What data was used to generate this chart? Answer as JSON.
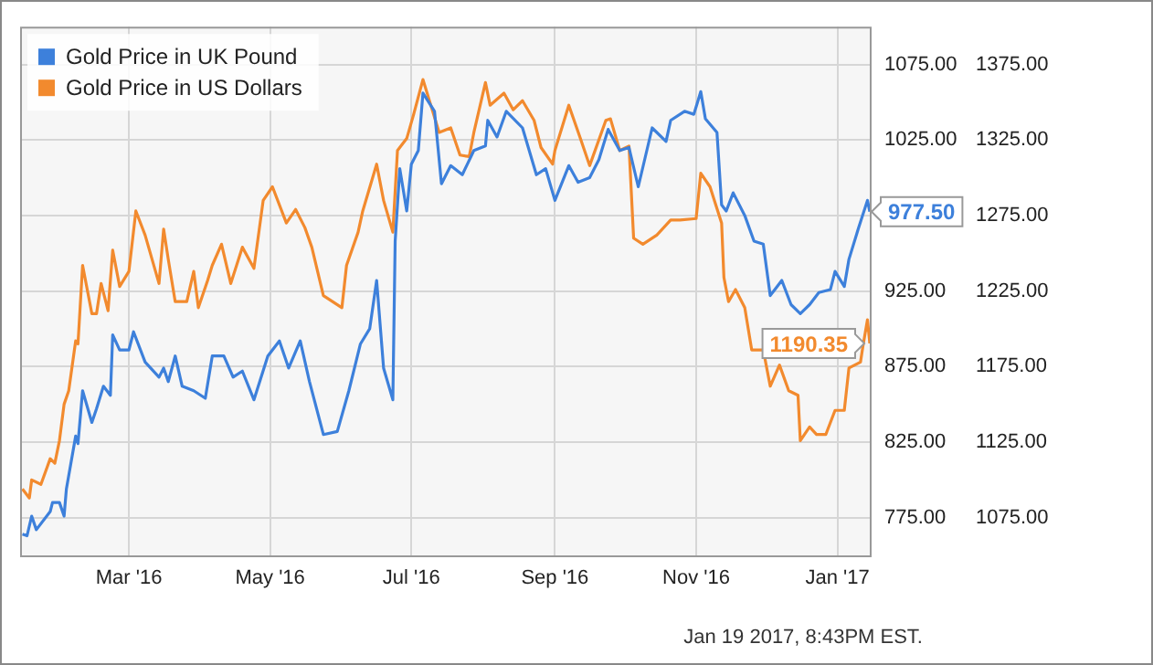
{
  "chart_data": {
    "type": "line",
    "legend": "top left",
    "grid": true,
    "marker": "none",
    "line_style": "solid",
    "xlim": [
      "2016-01-14",
      "2017-01-15"
    ],
    "xticks": [
      {
        "value": "2016-03-01",
        "label": "Mar '16"
      },
      {
        "value": "2016-05-01",
        "label": "May '16"
      },
      {
        "value": "2016-07-01",
        "label": "Jul '16"
      },
      {
        "value": "2016-09-01",
        "label": "Sep '16"
      },
      {
        "value": "2016-11-01",
        "label": "Nov '16"
      },
      {
        "value": "2017-01-01",
        "label": "Jan '17"
      }
    ],
    "ylim": [
      750,
      1100
    ],
    "yticks": [
      {
        "value": 775,
        "label": "775.00"
      },
      {
        "value": 825,
        "label": "825.00"
      },
      {
        "value": 875,
        "label": "875.00"
      },
      {
        "value": 925,
        "label": "925.00"
      },
      {
        "value": 975,
        "label": null
      },
      {
        "value": 1025,
        "label": "1025.00"
      },
      {
        "value": 1075,
        "label": "1075.00"
      }
    ],
    "y2lim": [
      1050,
      1400
    ],
    "y2ticks": [
      {
        "value": 1075,
        "label": "1075.00"
      },
      {
        "value": 1125,
        "label": "1125.00"
      },
      {
        "value": 1175,
        "label": "1175.00"
      },
      {
        "value": 1225,
        "label": "1225.00"
      },
      {
        "value": 1275,
        "label": "1275.00"
      },
      {
        "value": 1325,
        "label": "1325.00"
      },
      {
        "value": 1375,
        "label": "1375.00"
      }
    ],
    "annotations": [
      "Jan 19 2017, 8:43PM EST."
    ],
    "series": [
      {
        "name": "Gold Price in UK Pound",
        "color": "#3d80db",
        "axis": "y",
        "x": [
          "2016-01-15",
          "2016-01-17",
          "2016-01-19",
          "2016-01-21",
          "2016-01-27",
          "2016-01-28",
          "2016-01-31",
          "2016-02-02",
          "2016-02-03",
          "2016-02-07",
          "2016-02-08",
          "2016-02-10",
          "2016-02-14",
          "2016-02-16",
          "2016-02-19",
          "2016-02-22",
          "2016-02-23",
          "2016-02-26",
          "2016-03-01",
          "2016-03-03",
          "2016-03-08",
          "2016-03-14",
          "2016-03-16",
          "2016-03-18",
          "2016-03-21",
          "2016-03-24",
          "2016-03-29",
          "2016-04-03",
          "2016-04-06",
          "2016-04-11",
          "2016-04-15",
          "2016-04-19",
          "2016-04-24",
          "2016-04-30",
          "2016-05-05",
          "2016-05-09",
          "2016-05-14",
          "2016-05-18",
          "2016-05-24",
          "2016-05-30",
          "2016-06-04",
          "2016-06-09",
          "2016-06-13",
          "2016-06-16",
          "2016-06-19",
          "2016-06-23",
          "2016-06-24",
          "2016-06-26",
          "2016-06-29",
          "2016-07-01",
          "2016-07-04",
          "2016-07-06",
          "2016-07-11",
          "2016-07-14",
          "2016-07-18",
          "2016-07-23",
          "2016-07-28",
          "2016-08-02",
          "2016-08-03",
          "2016-08-07",
          "2016-08-11",
          "2016-08-18",
          "2016-08-24",
          "2016-08-28",
          "2016-09-01",
          "2016-09-07",
          "2016-09-11",
          "2016-09-16",
          "2016-09-20",
          "2016-09-24",
          "2016-09-29",
          "2016-10-03",
          "2016-10-07",
          "2016-10-13",
          "2016-10-19",
          "2016-10-21",
          "2016-10-27",
          "2016-10-31",
          "2016-11-03",
          "2016-11-05",
          "2016-11-10",
          "2016-11-12",
          "2016-11-14",
          "2016-11-17",
          "2016-11-22",
          "2016-11-26",
          "2016-11-30",
          "2016-12-03",
          "2016-12-05",
          "2016-12-08",
          "2016-12-12",
          "2016-12-16",
          "2016-12-20",
          "2016-12-24",
          "2016-12-29",
          "2016-12-31",
          "2017-01-04",
          "2017-01-06",
          "2017-01-10",
          "2017-01-14",
          "2017-01-15"
        ],
        "values": [
          764,
          763,
          776,
          767,
          779,
          785,
          785,
          776,
          794,
          829,
          824,
          859,
          838,
          847,
          862,
          856,
          896,
          886,
          886,
          898,
          878,
          868,
          874,
          865,
          882,
          862,
          859,
          854,
          882,
          882,
          868,
          872,
          853,
          882,
          892,
          874,
          892,
          865,
          830,
          832,
          859,
          890,
          900,
          932,
          874,
          853,
          958,
          1006,
          978,
          1009,
          1018,
          1056,
          1044,
          996,
          1008,
          1002,
          1018,
          1021,
          1038,
          1027,
          1044,
          1033,
          1002,
          1006,
          985,
          1008,
          997,
          1000,
          1012,
          1032,
          1018,
          1020,
          994,
          1033,
          1024,
          1038,
          1044,
          1042,
          1057,
          1039,
          1030,
          982,
          978,
          990,
          975,
          958,
          956,
          922,
          926,
          932,
          916,
          910,
          916,
          924,
          926,
          938,
          928,
          946,
          966,
          985,
          977.5
        ],
        "value_labels": [
          null,
          null,
          null,
          null,
          null,
          null,
          null,
          null,
          null,
          null,
          null,
          null,
          null,
          null,
          null,
          null,
          null,
          null,
          null,
          null,
          null,
          null,
          null,
          null,
          null,
          null,
          null,
          null,
          null,
          null,
          null,
          null,
          null,
          null,
          null,
          null,
          null,
          null,
          null,
          null,
          null,
          null,
          null,
          null,
          null,
          null,
          null,
          null,
          null,
          null,
          null,
          null,
          null,
          null,
          null,
          null,
          null,
          null,
          null,
          null,
          null,
          null,
          null,
          null,
          null,
          null,
          null,
          null,
          null,
          null,
          null,
          null,
          null,
          null,
          null,
          null,
          null,
          null,
          null,
          null,
          null,
          null,
          null,
          null,
          null,
          null,
          null,
          null,
          null,
          null,
          null,
          null,
          null,
          null,
          null,
          null,
          null,
          null,
          null,
          null,
          "977.50"
        ]
      },
      {
        "name": "Gold Price in US Dollars",
        "color": "#f28a2e",
        "axis": "y2",
        "x": [
          "2016-01-15",
          "2016-01-18",
          "2016-01-19",
          "2016-01-23",
          "2016-01-27",
          "2016-01-29",
          "2016-01-31",
          "2016-02-02",
          "2016-02-04",
          "2016-02-07",
          "2016-02-08",
          "2016-02-10",
          "2016-02-14",
          "2016-02-16",
          "2016-02-18",
          "2016-02-21",
          "2016-02-23",
          "2016-02-26",
          "2016-03-01",
          "2016-03-04",
          "2016-03-08",
          "2016-03-14",
          "2016-03-16",
          "2016-03-18",
          "2016-03-21",
          "2016-03-26",
          "2016-03-29",
          "2016-03-31",
          "2016-04-04",
          "2016-04-06",
          "2016-04-10",
          "2016-04-14",
          "2016-04-19",
          "2016-04-24",
          "2016-04-28",
          "2016-05-02",
          "2016-05-08",
          "2016-05-12",
          "2016-05-16",
          "2016-05-19",
          "2016-05-24",
          "2016-06-01",
          "2016-06-03",
          "2016-06-08",
          "2016-06-10",
          "2016-06-16",
          "2016-06-19",
          "2016-06-23",
          "2016-06-25",
          "2016-06-29",
          "2016-07-02",
          "2016-07-06",
          "2016-07-10",
          "2016-07-13",
          "2016-07-18",
          "2016-07-22",
          "2016-07-26",
          "2016-07-28",
          "2016-08-02",
          "2016-08-04",
          "2016-08-10",
          "2016-08-14",
          "2016-08-18",
          "2016-08-23",
          "2016-08-26",
          "2016-08-31",
          "2016-09-01",
          "2016-09-07",
          "2016-09-12",
          "2016-09-16",
          "2016-09-23",
          "2016-09-25",
          "2016-09-29",
          "2016-10-03",
          "2016-10-05",
          "2016-10-09",
          "2016-10-15",
          "2016-10-21",
          "2016-10-25",
          "2016-11-01",
          "2016-11-03",
          "2016-11-07",
          "2016-11-12",
          "2016-11-13",
          "2016-11-15",
          "2016-11-18",
          "2016-11-22",
          "2016-11-25",
          "2016-11-30",
          "2016-12-03",
          "2016-12-07",
          "2016-12-11",
          "2016-12-15",
          "2016-12-16",
          "2016-12-20",
          "2016-12-23",
          "2016-12-27",
          "2016-12-31",
          "2017-01-04",
          "2017-01-06",
          "2017-01-11",
          "2017-01-12",
          "2017-01-14",
          "2017-01-15"
        ],
        "values": [
          1094,
          1088,
          1100,
          1097,
          1114,
          1111,
          1126,
          1150,
          1159,
          1192,
          1190,
          1242,
          1210,
          1210,
          1230,
          1212,
          1252,
          1228,
          1238,
          1278,
          1262,
          1230,
          1266,
          1246,
          1218,
          1218,
          1238,
          1214,
          1232,
          1242,
          1256,
          1230,
          1254,
          1240,
          1285,
          1294,
          1270,
          1279,
          1267,
          1254,
          1222,
          1214,
          1242,
          1264,
          1278,
          1309,
          1285,
          1264,
          1318,
          1326,
          1342,
          1365,
          1345,
          1330,
          1333,
          1315,
          1314,
          1330,
          1363,
          1348,
          1356,
          1345,
          1351,
          1338,
          1320,
          1309,
          1318,
          1348,
          1326,
          1308,
          1338,
          1339,
          1318,
          1321,
          1260,
          1256,
          1262,
          1272,
          1272,
          1273,
          1303,
          1294,
          1270,
          1234,
          1218,
          1226,
          1214,
          1186,
          1186,
          1162,
          1176,
          1159,
          1156,
          1126,
          1135,
          1130,
          1130,
          1146,
          1146,
          1174,
          1178,
          1188,
          1206,
          1190.35
        ],
        "value_labels": [
          null,
          null,
          null,
          null,
          null,
          null,
          null,
          null,
          null,
          null,
          null,
          null,
          null,
          null,
          null,
          null,
          null,
          null,
          null,
          null,
          null,
          null,
          null,
          null,
          null,
          null,
          null,
          null,
          null,
          null,
          null,
          null,
          null,
          null,
          null,
          null,
          null,
          null,
          null,
          null,
          null,
          null,
          null,
          null,
          null,
          null,
          null,
          null,
          null,
          null,
          null,
          null,
          null,
          null,
          null,
          null,
          null,
          null,
          null,
          null,
          null,
          null,
          null,
          null,
          null,
          null,
          null,
          null,
          null,
          null,
          null,
          null,
          null,
          null,
          null,
          null,
          null,
          null,
          null,
          null,
          null,
          null,
          null,
          null,
          null,
          null,
          null,
          null,
          null,
          null,
          null,
          null,
          null,
          null,
          null,
          null,
          null,
          null,
          null,
          null,
          null,
          null,
          null,
          "1190.35"
        ]
      }
    ]
  }
}
